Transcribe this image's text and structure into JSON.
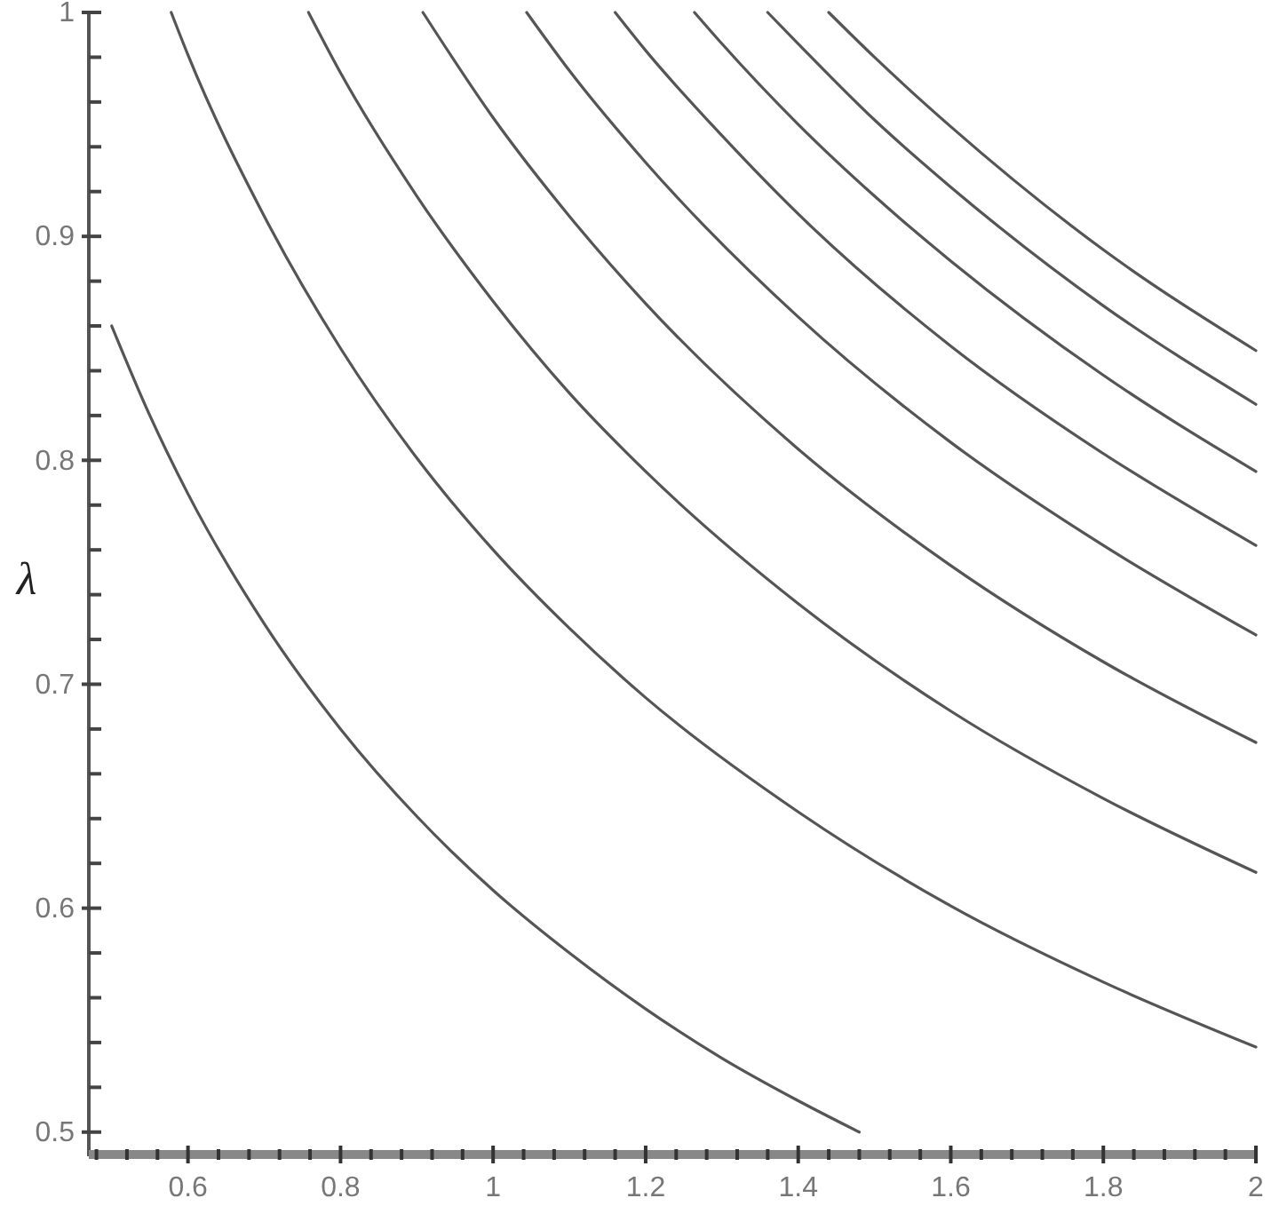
{
  "chart_data": {
    "type": "line",
    "ylabel": "λ",
    "xlim": [
      0.47,
      2.0
    ],
    "ylim": [
      0.49,
      1.0
    ],
    "xticks": [
      {
        "value": 0.48,
        "label": null
      },
      {
        "value": 0.52,
        "label": null
      },
      {
        "value": 0.56,
        "label": null
      },
      0.6,
      {
        "value": 0.64,
        "label": null
      },
      {
        "value": 0.68,
        "label": null
      },
      {
        "value": 0.72,
        "label": null
      },
      {
        "value": 0.76,
        "label": null
      },
      0.8,
      {
        "value": 0.84,
        "label": null
      },
      {
        "value": 0.88,
        "label": null
      },
      {
        "value": 0.92,
        "label": null
      },
      {
        "value": 0.96,
        "label": null
      },
      1,
      {
        "value": 1.04,
        "label": null
      },
      {
        "value": 1.08,
        "label": null
      },
      {
        "value": 1.12,
        "label": null
      },
      {
        "value": 1.16,
        "label": null
      },
      1.2,
      {
        "value": 1.24,
        "label": null
      },
      {
        "value": 1.28,
        "label": null
      },
      {
        "value": 1.32,
        "label": null
      },
      {
        "value": 1.36,
        "label": null
      },
      1.4,
      {
        "value": 1.44,
        "label": null
      },
      {
        "value": 1.48,
        "label": null
      },
      {
        "value": 1.52,
        "label": null
      },
      {
        "value": 1.56,
        "label": null
      },
      1.6,
      {
        "value": 1.64,
        "label": null
      },
      {
        "value": 1.68,
        "label": null
      },
      {
        "value": 1.72,
        "label": null
      },
      {
        "value": 1.76,
        "label": null
      },
      1.8,
      {
        "value": 1.84,
        "label": null
      },
      {
        "value": 1.88,
        "label": null
      },
      {
        "value": 1.92,
        "label": null
      },
      {
        "value": 1.96,
        "label": null
      },
      2
    ],
    "yticks": [
      0.5,
      {
        "value": 0.52,
        "label": null
      },
      {
        "value": 0.54,
        "label": null
      },
      {
        "value": 0.56,
        "label": null
      },
      {
        "value": 0.58,
        "label": null
      },
      0.6,
      {
        "value": 0.62,
        "label": null
      },
      {
        "value": 0.64,
        "label": null
      },
      {
        "value": 0.66,
        "label": null
      },
      {
        "value": 0.68,
        "label": null
      },
      0.7,
      {
        "value": 0.72,
        "label": null
      },
      {
        "value": 0.74,
        "label": null
      },
      {
        "value": 0.76,
        "label": null
      },
      {
        "value": 0.78,
        "label": null
      },
      0.8,
      {
        "value": 0.82,
        "label": null
      },
      {
        "value": 0.84,
        "label": null
      },
      {
        "value": 0.86,
        "label": null
      },
      {
        "value": 0.88,
        "label": null
      },
      0.9,
      {
        "value": 0.92,
        "label": null
      },
      {
        "value": 0.94,
        "label": null
      },
      {
        "value": 0.96,
        "label": null
      },
      {
        "value": 0.98,
        "label": null
      },
      1
    ],
    "series": [
      {
        "color": "#555555",
        "x": [
          0.5,
          0.55,
          0.6,
          0.7,
          0.8,
          0.9,
          1.0,
          1.1,
          1.2,
          1.3,
          1.4,
          1.48
        ],
        "values": [
          0.86,
          0.82,
          0.785,
          0.727,
          0.68,
          0.641,
          0.608,
          0.58,
          0.555,
          0.533,
          0.514,
          0.5
        ]
      },
      {
        "color": "#555555",
        "x": [
          0.578,
          0.6,
          0.7,
          0.8,
          0.9,
          1.0,
          1.1,
          1.2,
          1.4,
          1.6,
          1.8,
          2.0
        ],
        "values": [
          1,
          0.981,
          0.909,
          0.85,
          0.801,
          0.76,
          0.725,
          0.694,
          0.643,
          0.601,
          0.567,
          0.538
        ]
      },
      {
        "color": "#555555",
        "x": [
          0.758,
          0.8,
          0.9,
          1.0,
          1.1,
          1.2,
          1.4,
          1.6,
          1.8,
          2.0
        ],
        "values": [
          1,
          0.973,
          0.918,
          0.871,
          0.83,
          0.795,
          0.736,
          0.688,
          0.649,
          0.616
        ]
      },
      {
        "color": "#555555",
        "x": [
          0.908,
          1.0,
          1.1,
          1.2,
          1.4,
          1.6,
          1.8,
          2.0
        ],
        "values": [
          1,
          0.953,
          0.909,
          0.87,
          0.805,
          0.753,
          0.71,
          0.674
        ]
      },
      {
        "color": "#555555",
        "x": [
          1.044,
          1.1,
          1.2,
          1.4,
          1.6,
          1.8,
          2.0
        ],
        "values": [
          1,
          0.974,
          0.933,
          0.864,
          0.808,
          0.762,
          0.722
        ]
      },
      {
        "color": "#555555",
        "x": [
          1.16,
          1.2,
          1.3,
          1.4,
          1.6,
          1.8,
          2.0
        ],
        "values": [
          1,
          0.983,
          0.945,
          0.91,
          0.851,
          0.803,
          0.762
        ]
      },
      {
        "color": "#555555",
        "x": [
          1.264,
          1.3,
          1.4,
          1.5,
          1.6,
          1.8,
          2.0
        ],
        "values": [
          1,
          0.986,
          0.95,
          0.918,
          0.889,
          0.838,
          0.795
        ]
      },
      {
        "color": "#555555",
        "x": [
          1.36,
          1.4,
          1.5,
          1.6,
          1.8,
          2.0
        ],
        "values": [
          1,
          0.986,
          0.952,
          0.922,
          0.869,
          0.825
        ]
      },
      {
        "color": "#555555",
        "x": [
          1.44,
          1.5,
          1.6,
          1.8,
          2.0
        ],
        "values": [
          1,
          0.98,
          0.949,
          0.894,
          0.849
        ]
      }
    ]
  }
}
